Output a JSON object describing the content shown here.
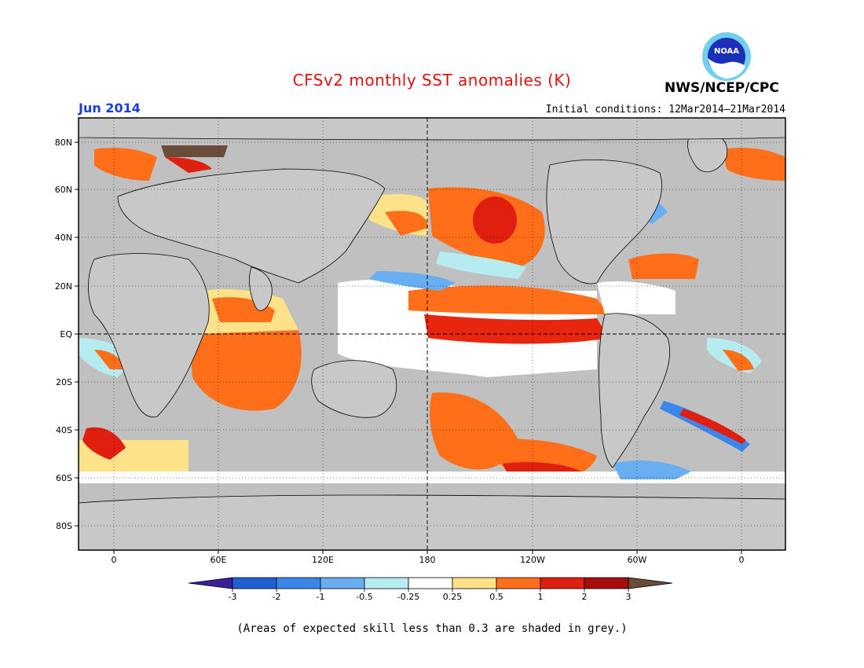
{
  "header": {
    "title": "CFSv2 monthly SST anomalies (K)",
    "month": "Jun 2014",
    "initial_conditions": "Initial conditions: 12Mar2014–21Mar2014",
    "agency": "NWS/NCEP/CPC",
    "logo_text": "NOAA"
  },
  "map": {
    "lat_labels": [
      "80N",
      "60N",
      "40N",
      "20N",
      "EQ",
      "20S",
      "40S",
      "60S",
      "80S"
    ],
    "lon_labels": [
      "0",
      "60E",
      "120E",
      "180",
      "120W",
      "60W",
      "0"
    ],
    "land_color": "#c8c8c8",
    "grey_color": "#c0c0c0"
  },
  "colorbar": {
    "labels": [
      "-3",
      "-2",
      "-1",
      "-0.5",
      "-0.25",
      "0.25",
      "0.5",
      "1",
      "2",
      "3"
    ],
    "colors": [
      "#3a1e9e",
      "#1f5fd0",
      "#3c86ea",
      "#6aaef2",
      "#b6ecf0",
      "#ffffff",
      "#fde28a",
      "#ff6f1a",
      "#e01f10",
      "#a80c0c",
      "#6b4b3a"
    ]
  },
  "footnote": "(Areas of expected skill less than 0.3 are shaded in grey.)"
}
